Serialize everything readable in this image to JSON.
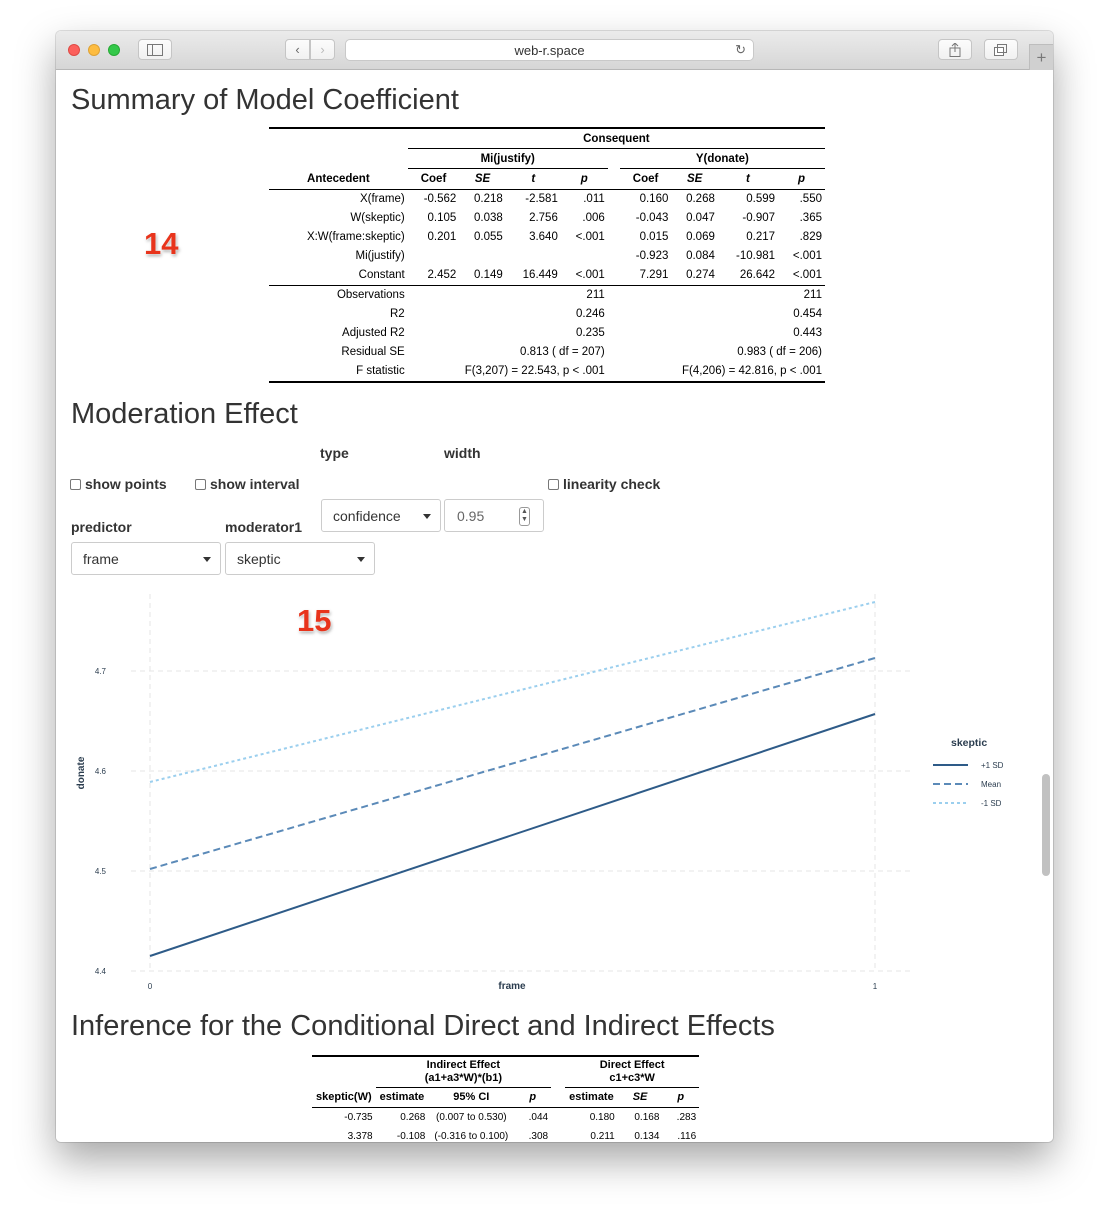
{
  "browser": {
    "url": "web-r.space"
  },
  "overlays": {
    "table_marker": "14",
    "plot_marker": "15"
  },
  "section1": {
    "title": "Summary of Model Coefficient",
    "table": {
      "consequent_label": "Consequent",
      "antecedent_label": "Antecedent",
      "models": [
        "Mi(justify)",
        "Y(donate)"
      ],
      "subheaders": [
        "Coef",
        "SE",
        "t",
        "p"
      ],
      "rows": [
        {
          "label": "X(frame)",
          "m1": [
            "-0.562",
            "0.218",
            "-2.581",
            ".011"
          ],
          "m2": [
            "0.160",
            "0.268",
            "0.599",
            ".550"
          ]
        },
        {
          "label": "W(skeptic)",
          "m1": [
            "0.105",
            "0.038",
            "2.756",
            ".006"
          ],
          "m2": [
            "-0.043",
            "0.047",
            "-0.907",
            ".365"
          ]
        },
        {
          "label": "X:W(frame:skeptic)",
          "m1": [
            "0.201",
            "0.055",
            "3.640",
            "<.001"
          ],
          "m2": [
            "0.015",
            "0.069",
            "0.217",
            ".829"
          ]
        },
        {
          "label": "Mi(justify)",
          "m1": [
            "",
            "",
            "",
            ""
          ],
          "m2": [
            "-0.923",
            "0.084",
            "-10.981",
            "<.001"
          ]
        },
        {
          "label": "Constant",
          "m1": [
            "2.452",
            "0.149",
            "16.449",
            "<.001"
          ],
          "m2": [
            "7.291",
            "0.274",
            "26.642",
            "<.001"
          ]
        }
      ],
      "stats": [
        {
          "label": "Observations",
          "m1": "211",
          "m2": "211"
        },
        {
          "label": "R2",
          "m1": "0.246",
          "m2": "0.454"
        },
        {
          "label": "Adjusted R2",
          "m1": "0.235",
          "m2": "0.443"
        },
        {
          "label": "Residual SE",
          "m1": "0.813 ( df = 207)",
          "m2": "0.983 ( df = 206)"
        },
        {
          "label": "F statistic",
          "m1": "F(3,207) = 22.543, p < .001",
          "m2": "F(4,206) = 42.816, p < .001"
        }
      ]
    }
  },
  "section2": {
    "title": "Moderation Effect",
    "controls": {
      "show_points": "show points",
      "show_interval": "show interval",
      "type_label": "type",
      "type_value": "confidence",
      "width_label": "width",
      "width_value": "0.95",
      "linearity_check": "linearity check",
      "predictor_label": "predictor",
      "predictor_value": "frame",
      "moderator_label": "moderator1",
      "moderator_value": "skeptic"
    }
  },
  "chart_data": {
    "type": "line",
    "title": "",
    "xlabel": "frame",
    "ylabel": "donate",
    "x": [
      0,
      1
    ],
    "xticks": [
      "0",
      "1"
    ],
    "yticks": [
      "4.4",
      "4.5",
      "4.6",
      "4.7"
    ],
    "xlim": [
      0,
      1
    ],
    "ylim": [
      4.4,
      4.77
    ],
    "grid": true,
    "legend_title": "skeptic",
    "legend_position": "right",
    "series": [
      {
        "name": "+1 SD",
        "values": [
          4.415,
          4.657
        ],
        "color": "#2e5b88",
        "dash": "solid"
      },
      {
        "name": "Mean",
        "values": [
          4.502,
          4.713
        ],
        "color": "#5b8ab8",
        "dash": "dashed"
      },
      {
        "name": "-1 SD",
        "values": [
          4.589,
          4.769
        ],
        "color": "#9bcfee",
        "dash": "dotted"
      }
    ]
  },
  "section3": {
    "title": "Inference for the Conditional Direct and Indirect Effects",
    "table": {
      "indirect_header": "Indirect Effect",
      "indirect_formula": "(a1+a3*W)*(b1)",
      "direct_header": "Direct Effect",
      "direct_formula": "c1+c3*W",
      "columns": [
        "skeptic(W)",
        "estimate",
        "95% CI",
        "p",
        "estimate",
        "SE",
        "p"
      ],
      "rows": [
        [
          "-0.735",
          "0.268",
          "(0.007 to 0.530)",
          ".044",
          "0.180",
          "0.168",
          ".283"
        ],
        [
          "3.378",
          "-0.108",
          "(-0.316 to 0.100)",
          ".308",
          "0.211",
          "0.134",
          ".116"
        ]
      ]
    }
  }
}
